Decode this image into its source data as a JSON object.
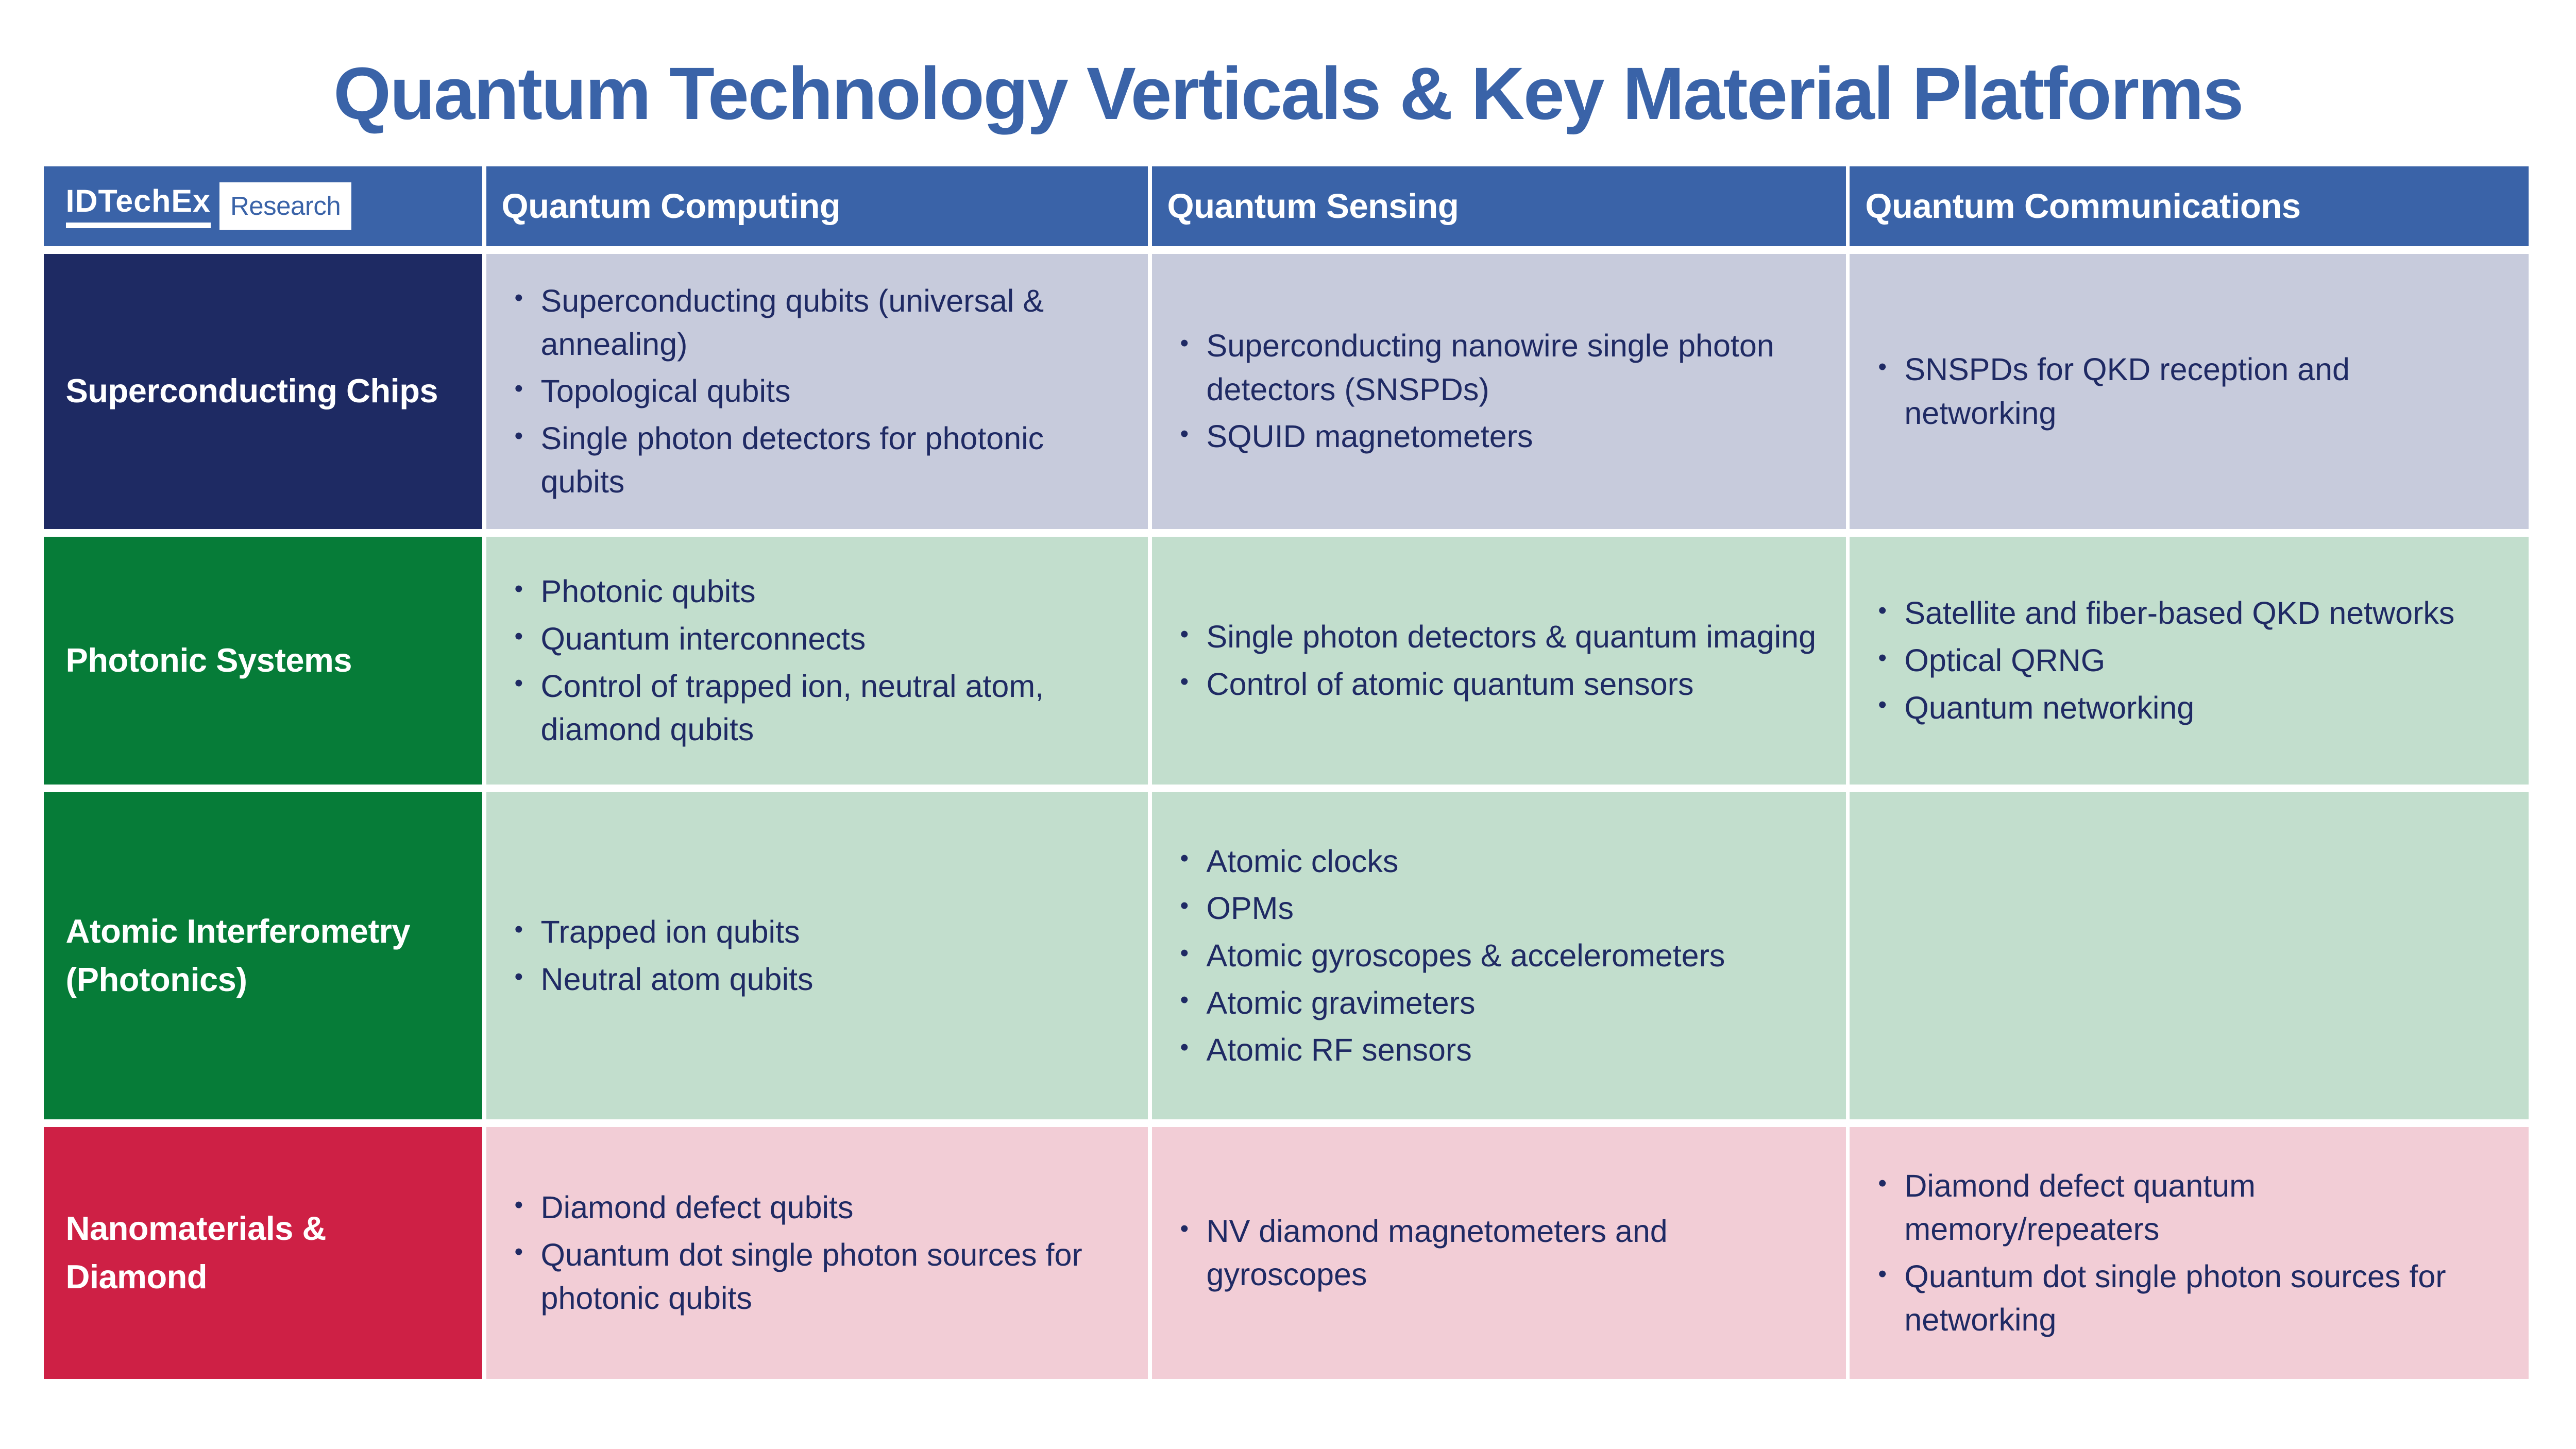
{
  "title": "Quantum Technology Verticals & Key Material Platforms",
  "logo": {
    "brand": "IDTechEx",
    "suffix": "Research"
  },
  "columns": [
    "Quantum Computing",
    "Quantum Sensing",
    "Quantum Communications"
  ],
  "rows": [
    {
      "label": "Superconducting Chips",
      "cells": [
        [
          "Superconducting qubits (universal & annealing)",
          "Topological qubits",
          "Single photon detectors for photonic qubits"
        ],
        [
          "Superconducting nanowire single photon detectors (SNSPDs)",
          "SQUID magnetometers"
        ],
        [
          "SNSPDs for QKD reception and networking"
        ]
      ]
    },
    {
      "label": "Photonic Systems",
      "cells": [
        [
          "Photonic qubits",
          "Quantum interconnects",
          "Control of trapped ion, neutral atom, diamond qubits"
        ],
        [
          "Single photon detectors & quantum imaging",
          "Control of atomic quantum sensors"
        ],
        [
          "Satellite and fiber-based QKD networks",
          "Optical QRNG",
          "Quantum networking"
        ]
      ]
    },
    {
      "label": "Atomic Interferometry (Photonics)",
      "cells": [
        [
          "Trapped ion qubits",
          "Neutral atom qubits"
        ],
        [
          "Atomic clocks",
          "OPMs",
          "Atomic gyroscopes & accelerometers",
          "Atomic gravimeters",
          "Atomic RF sensors"
        ],
        []
      ]
    },
    {
      "label": "Nanomaterials & Diamond",
      "cells": [
        [
          "Diamond defect qubits",
          "Quantum dot single photon sources for photonic qubits"
        ],
        [
          "NV diamond magnetometers and gyroscopes"
        ],
        [
          "Diamond defect quantum memory/repeaters",
          "Quantum dot single photon sources for networking"
        ]
      ]
    }
  ],
  "colors": {
    "background": "#FFFFFF",
    "title_blue": "#3A63A8",
    "header_blue": "#3A63A8",
    "navy_row": "#1E2A63",
    "green_row": "#067C38",
    "red_row": "#CE2045",
    "lavender_cell": "#C7CBDC",
    "light_green_cell": "#C2DECD",
    "pink_cell": "#F2CDD6",
    "bullet_text_navy": "#1F2A64",
    "logo_text_white": "#FFFFFF",
    "research_text_blue": "#3A63A8"
  }
}
